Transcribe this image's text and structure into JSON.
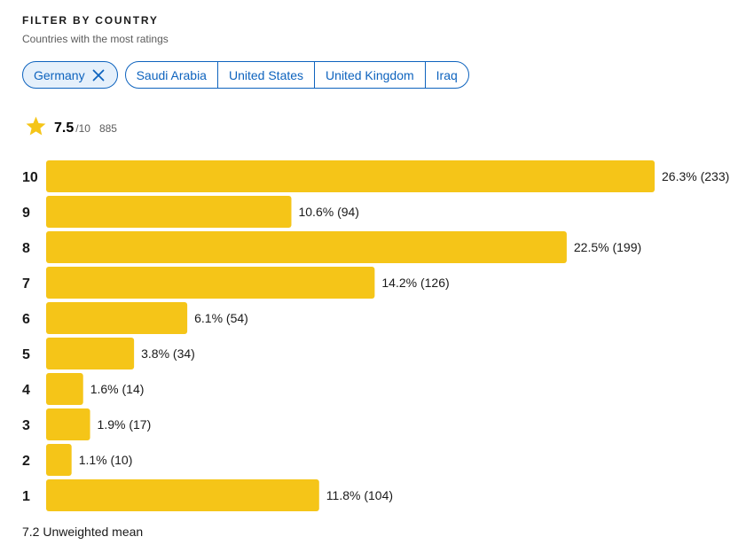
{
  "header": {
    "title": "FILTER BY COUNTRY",
    "subtitle": "Countries with the most ratings"
  },
  "filters": {
    "selected": {
      "label": "Germany",
      "icon": "close-icon"
    },
    "options": [
      {
        "label": "Saudi Arabia"
      },
      {
        "label": "United States"
      },
      {
        "label": "United Kingdom"
      },
      {
        "label": "Iraq"
      }
    ]
  },
  "rating": {
    "icon": "star-icon",
    "value": "7.5",
    "max": "/10",
    "count": "885"
  },
  "colors": {
    "accent": "#0e63be",
    "bar": "#f5c518"
  },
  "chart_data": {
    "type": "bar",
    "orientation": "horizontal",
    "categories": [
      "10",
      "9",
      "8",
      "7",
      "6",
      "5",
      "4",
      "3",
      "2",
      "1"
    ],
    "values": [
      26.3,
      10.6,
      22.5,
      14.2,
      6.1,
      3.8,
      1.6,
      1.9,
      1.1,
      11.8
    ],
    "counts": [
      233,
      94,
      199,
      126,
      54,
      34,
      14,
      17,
      10,
      104
    ],
    "labels": [
      "26.3% (233)",
      "10.6% (94)",
      "22.5% (199)",
      "14.2% (126)",
      "6.1% (54)",
      "3.8% (34)",
      "1.6% (14)",
      "1.9% (17)",
      "1.1% (10)",
      "11.8% (104)"
    ],
    "title": "",
    "xlabel": "",
    "ylabel": "",
    "grid": false,
    "legend": "none"
  },
  "footer": {
    "text": "7.2 Unweighted mean"
  }
}
